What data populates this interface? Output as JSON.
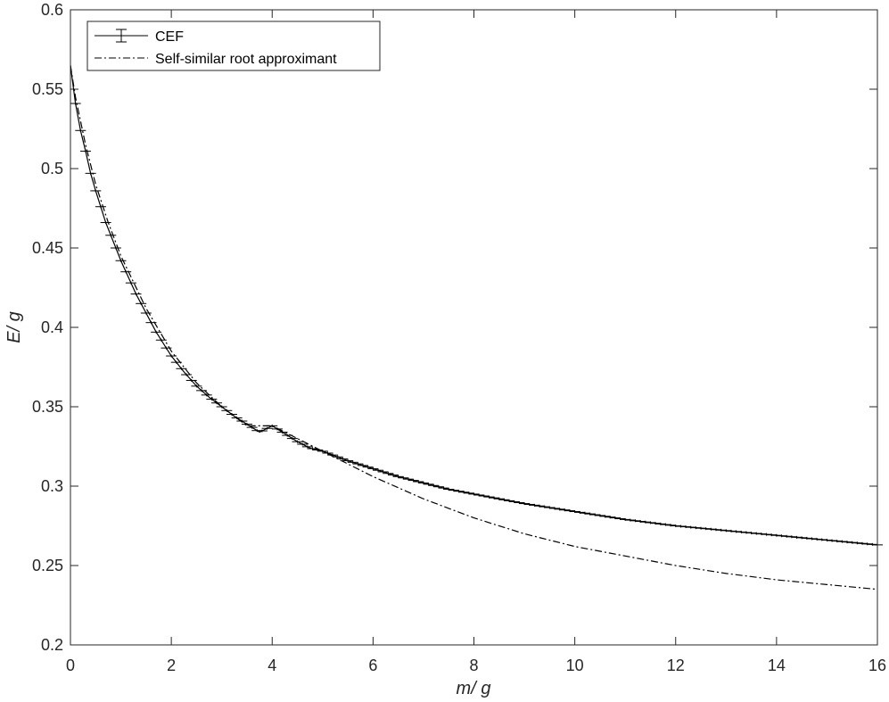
{
  "chart_data": {
    "type": "line",
    "xlabel": "m/ g",
    "ylabel": "E/ g",
    "xlim": [
      0,
      16
    ],
    "ylim": [
      0.2,
      0.6
    ],
    "xticks": [
      0,
      2,
      4,
      6,
      8,
      10,
      12,
      14,
      16
    ],
    "yticks": [
      0.2,
      0.25,
      0.3,
      0.35,
      0.4,
      0.45,
      0.5,
      0.55,
      0.6
    ],
    "xtick_labels": [
      "0",
      "2",
      "4",
      "6",
      "8",
      "10",
      "12",
      "14",
      "16"
    ],
    "ytick_labels": [
      "0.2",
      "0.25",
      "0.3",
      "0.35",
      "0.4",
      "0.45",
      "0.5",
      "0.55",
      "0.6"
    ],
    "grid": false,
    "legend_position": "top-left",
    "series": [
      {
        "name": "CEF",
        "style": "solid-with-errorbars",
        "color": "#000000",
        "x": [
          0,
          0.1,
          0.2,
          0.3,
          0.4,
          0.5,
          0.6,
          0.7,
          0.8,
          0.9,
          1.0,
          1.1,
          1.2,
          1.3,
          1.4,
          1.5,
          1.6,
          1.7,
          1.8,
          1.9,
          2.0,
          2.25,
          2.5,
          2.75,
          3.0,
          3.25,
          3.5,
          3.75,
          4.0,
          4.25,
          4.5,
          4.75,
          5.0,
          5.5,
          6.0,
          6.5,
          7.0,
          7.5,
          8.0,
          8.5,
          9.0,
          10.0,
          11.0,
          12.0,
          13.0,
          14.0,
          15.0,
          16.0
        ],
        "y": [
          0.565,
          0.541,
          0.524,
          0.511,
          0.497,
          0.486,
          0.476,
          0.466,
          0.458,
          0.45,
          0.442,
          0.435,
          0.428,
          0.421,
          0.415,
          0.409,
          0.403,
          0.397,
          0.392,
          0.387,
          0.382,
          0.372,
          0.363,
          0.356,
          0.35,
          0.344,
          0.339,
          0.334,
          0.338,
          0.333,
          0.328,
          0.324,
          0.322,
          0.316,
          0.311,
          0.306,
          0.302,
          0.298,
          0.295,
          0.292,
          0.289,
          0.284,
          0.279,
          0.275,
          0.272,
          0.269,
          0.266,
          0.263
        ]
      },
      {
        "name": "Self-similar root approximant",
        "style": "dash-dot",
        "color": "#000000",
        "x": [
          0,
          0.1,
          0.2,
          0.3,
          0.5,
          0.75,
          1.0,
          1.5,
          2.0,
          2.5,
          3.0,
          3.5,
          4.0,
          4.5,
          5.0,
          6.0,
          7.0,
          8.0,
          9.0,
          10.0,
          11.0,
          12.0,
          13.0,
          14.0,
          15.0,
          16.0
        ],
        "y": [
          0.565,
          0.545,
          0.53,
          0.515,
          0.49,
          0.466,
          0.445,
          0.412,
          0.385,
          0.365,
          0.35,
          0.338,
          0.338,
          0.33,
          0.322,
          0.306,
          0.292,
          0.28,
          0.27,
          0.262,
          0.256,
          0.25,
          0.245,
          0.241,
          0.238,
          0.235
        ]
      }
    ]
  }
}
